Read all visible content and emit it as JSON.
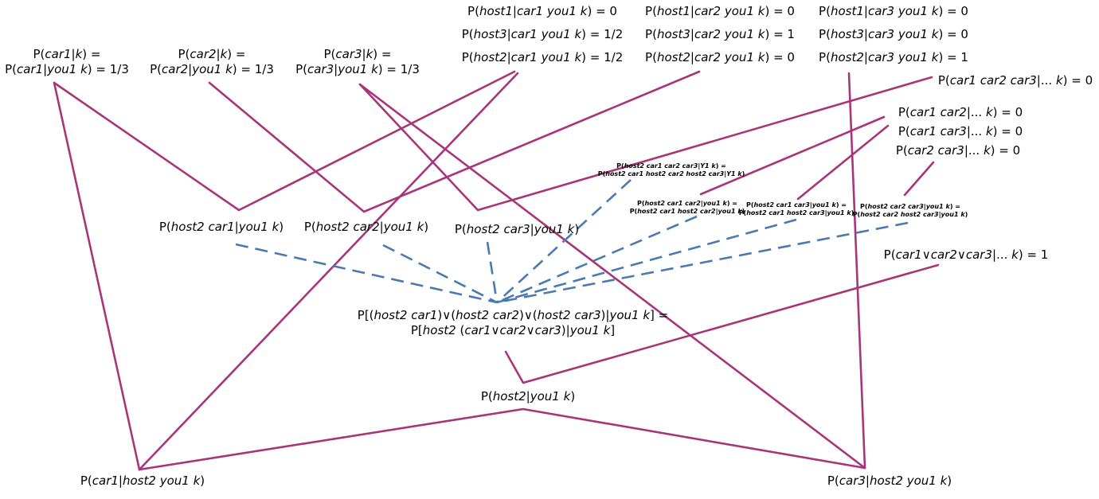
{
  "colors": {
    "solid_edge": "#a8357a",
    "dashed_edge": "#4a7ab0",
    "text": "#000000",
    "background": "#ffffff"
  },
  "nodes": {
    "p_car1_k": [
      "P(car1|k) =",
      "P(car1|you1 k) = 1/3"
    ],
    "p_car2_k": [
      "P(car2|k) =",
      "P(car2|you1 k) = 1/3"
    ],
    "p_car3_k": [
      "P(car3|k) =",
      "P(car3|you1 k) = 1/3"
    ],
    "car1_host_probs": [
      "P(host1|car1 you1 k) = 0",
      "P(host3|car1 you1 k) = 1/2",
      "P(host2|car1 you1 k) = 1/2"
    ],
    "car2_host_probs": [
      "P(host1|car2 you1 k) = 0",
      "P(host3|car2 you1 k) = 1",
      "P(host2|car2 you1 k) = 0"
    ],
    "car3_host_probs": [
      "P(host1|car3 you1 k) = 0",
      "P(host3|car3 you1 k) = 0",
      "P(host2|car3 you1 k) = 1"
    ],
    "p_car123_k": "P(car1 car2 car3|... k) = 0",
    "p_car12_k": "P(car1 car2|... k) = 0",
    "p_car13_k": "P(car1 car3|... k) = 0",
    "p_car23_k": "P(car2 car3|... k) = 0",
    "joint_123": [
      "P(host2 car1 car2 car3|Y1 k) =",
      "P(host2 car1 host2 car2 host2 car3|Y1 k)"
    ],
    "joint_12": [
      "P(host2 car1 car2|you1 k) =",
      "P(host2 car1 host2 car2|you1 k)"
    ],
    "joint_13": [
      "P(host2 car1 car3|you1 k) =",
      "P(host2 car1 host2 car3|you1 k)"
    ],
    "joint_23": [
      "P(host2 car2 car3|you1 k) =",
      "P(host2 car2 host2 car3|you1 k)"
    ],
    "p_host2_car1": "P(host2 car1|you1 k)",
    "p_host2_car2": "P(host2 car2|you1 k)",
    "p_host2_car3": "P(host2 car3|you1 k)",
    "p_or_car": "P(car1∨car2∨car3|... k) = 1",
    "union": [
      "P[(host2 car1)∨(host2 car2)∨(host2 car3)|you1 k] =",
      "P[host2 (car1∨car2∨car3)|you1 k]"
    ],
    "p_host2": "P(host2|you1 k)",
    "posterior_car1": "P(car1|host2 you1 k)",
    "posterior_car3": "P(car3|host2 you1 k)"
  }
}
